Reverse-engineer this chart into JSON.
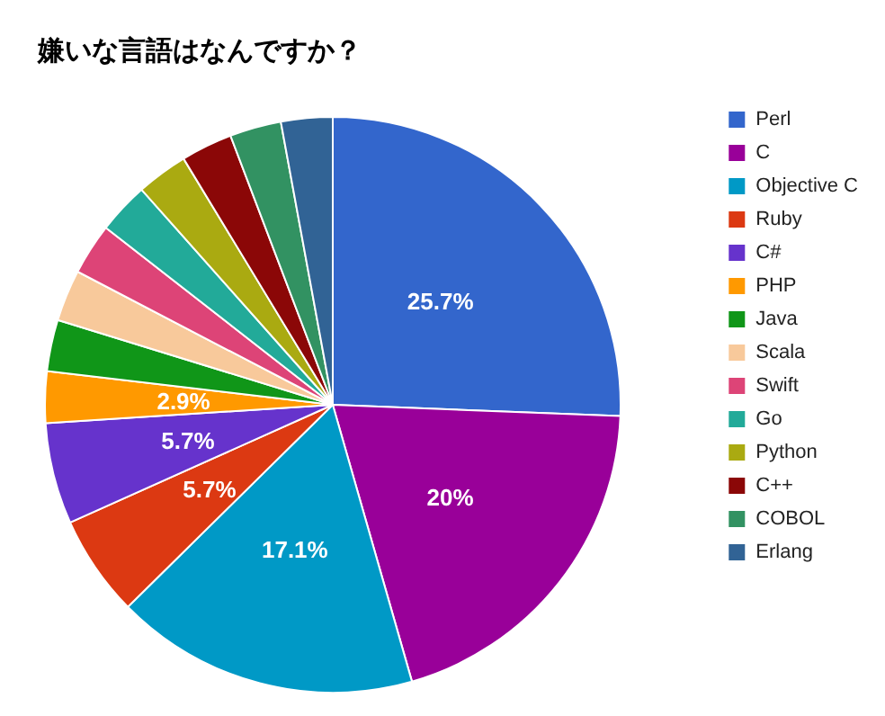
{
  "chart_data": {
    "type": "pie",
    "title": "嫌いな言語はなんですか？",
    "categories": [
      "Perl",
      "C",
      "Objective C",
      "Ruby",
      "C#",
      "PHP",
      "Java",
      "Scala",
      "Swift",
      "Go",
      "Python",
      "C++",
      "COBOL",
      "Erlang"
    ],
    "values": [
      25.7,
      20,
      17.1,
      5.7,
      5.7,
      2.9,
      2.9,
      2.9,
      2.9,
      2.9,
      2.9,
      2.9,
      2.9,
      2.9
    ],
    "value_labels": [
      "25.7%",
      "20%",
      "17.1%",
      "5.7%",
      "5.7%",
      "2.9%",
      null,
      null,
      null,
      null,
      null,
      null,
      null,
      null
    ],
    "colors": [
      "#3366cc",
      "#990099",
      "#0099c6",
      "#dc3912",
      "#6633cc",
      "#ff9900",
      "#109618",
      "#f8c99b",
      "#dd4477",
      "#22aa99",
      "#aaaa11",
      "#8b0707",
      "#329262",
      "#316395"
    ],
    "legend": "right"
  }
}
